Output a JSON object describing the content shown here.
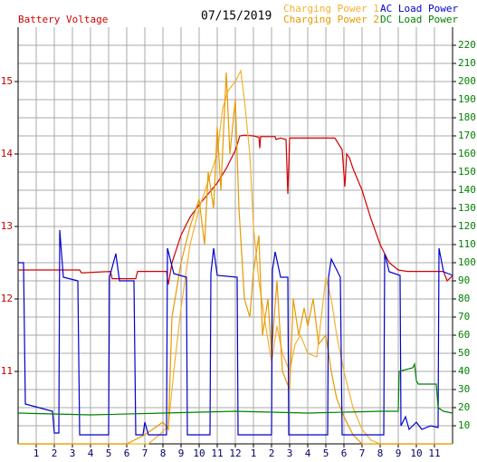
{
  "chart_data": {
    "type": "line",
    "title": "07/15/2019",
    "xlim": [
      0,
      24
    ],
    "xticks": [
      1,
      2,
      3,
      4,
      5,
      6,
      7,
      8,
      9,
      10,
      11,
      12,
      {
        "value": 13,
        "label": "1"
      },
      {
        "value": 14,
        "label": "2"
      },
      {
        "value": 15,
        "label": "3"
      },
      {
        "value": 16,
        "label": "4"
      },
      {
        "value": 17,
        "label": "5"
      },
      {
        "value": 18,
        "label": "6"
      },
      {
        "value": 19,
        "label": "7"
      },
      {
        "value": 20,
        "label": "8"
      },
      {
        "value": 21,
        "label": "9"
      },
      {
        "value": 22,
        "label": "10"
      },
      {
        "value": 23,
        "label": "11"
      }
    ],
    "ylim": [
      10,
      15.75
    ],
    "yticks": [
      11,
      12,
      13,
      14,
      15
    ],
    "y2lim": [
      0,
      230
    ],
    "y2ticks": [
      10,
      20,
      30,
      40,
      50,
      60,
      70,
      80,
      90,
      100,
      110,
      120,
      130,
      140,
      150,
      160,
      170,
      180,
      190,
      200,
      210,
      220
    ],
    "grid": true,
    "series": [
      {
        "name": "Battery Voltage",
        "color": "#d00000",
        "x": [
          0,
          3.4,
          3.5,
          5.1,
          5.2,
          6.5,
          6.6,
          8.2,
          8.3,
          8.5,
          9,
          9.5,
          10,
          10.5,
          11,
          11.5,
          12,
          12.25,
          12.5,
          13,
          13.3,
          13.35,
          13.4,
          14.2,
          14.25,
          14.5,
          14.8,
          14.9,
          15,
          17.5,
          17.9,
          18.05,
          18.15,
          18.3,
          18.5,
          19,
          19.5,
          20,
          20.5,
          21,
          21.5,
          23.5,
          23.7,
          24
        ],
        "values": [
          12.4,
          12.4,
          12.36,
          12.38,
          12.28,
          12.28,
          12.38,
          12.38,
          12.2,
          12.5,
          12.88,
          13.13,
          13.3,
          13.45,
          13.6,
          13.8,
          14.05,
          14.25,
          14.26,
          14.25,
          14.23,
          14.08,
          14.24,
          14.24,
          14.2,
          14.22,
          14.2,
          13.45,
          14.22,
          14.22,
          14.06,
          13.55,
          14.0,
          13.95,
          13.8,
          13.5,
          13.1,
          12.75,
          12.5,
          12.4,
          12.38,
          12.38,
          12.25,
          12.32
        ]
      },
      {
        "name": "Charging Power 1",
        "color": "#f5b030",
        "axis": "y2",
        "x": [
          0,
          7.2,
          7.8,
          8.3,
          8.6,
          9,
          9.5,
          10,
          10.5,
          11,
          11.3,
          11.6,
          12,
          12.3,
          12.5,
          12.8,
          13,
          13.3,
          13.6,
          14,
          14.3,
          14.6,
          15,
          15.3,
          15.6,
          16,
          16.5,
          17,
          17.3,
          17.6,
          18,
          18.5,
          19,
          19.5,
          20,
          24
        ],
        "values": [
          0,
          0,
          5,
          10,
          40,
          75,
          110,
          130,
          145,
          160,
          185,
          195,
          200,
          206,
          190,
          160,
          120,
          90,
          70,
          45,
          65,
          50,
          40,
          55,
          60,
          50,
          48,
          92,
          80,
          60,
          40,
          20,
          8,
          2,
          0,
          0
        ]
      },
      {
        "name": "Charging Power 2",
        "color": "#e89a00",
        "axis": "y2",
        "x": [
          0,
          6,
          7,
          8,
          8.3,
          8.5,
          9,
          9.5,
          10,
          10.3,
          10.5,
          10.8,
          11,
          11.2,
          11.5,
          11.7,
          12,
          12.2,
          12.5,
          12.8,
          13,
          13.3,
          13.5,
          13.8,
          14,
          14.3,
          14.6,
          15,
          15.2,
          15.5,
          15.8,
          16,
          16.3,
          16.6,
          17,
          17.3,
          17.6,
          18,
          18.5,
          19,
          24
        ],
        "values": [
          0,
          0,
          5,
          12,
          8,
          70,
          100,
          120,
          135,
          110,
          150,
          130,
          175,
          140,
          205,
          160,
          190,
          130,
          80,
          70,
          95,
          115,
          60,
          80,
          50,
          90,
          40,
          30,
          80,
          60,
          75,
          65,
          80,
          55,
          60,
          40,
          25,
          15,
          5,
          0,
          0
        ]
      },
      {
        "name": "AC Load Power",
        "color": "#0000cc",
        "axis": "y2",
        "x": [
          0,
          0.3,
          0.4,
          1.9,
          2.0,
          2.25,
          2.3,
          2.5,
          3.3,
          3.4,
          5.0,
          5.05,
          5.4,
          5.6,
          6.4,
          6.5,
          6.9,
          7.0,
          7.2,
          8.2,
          8.25,
          8.6,
          9.3,
          9.35,
          10.6,
          10.65,
          10.8,
          11.0,
          12.1,
          12.15,
          14.0,
          14.05,
          14.2,
          14.5,
          14.9,
          14.95,
          17.1,
          17.15,
          17.3,
          17.8,
          17.9,
          20.2,
          20.25,
          20.5,
          21.1,
          21.15,
          21.4,
          21.6,
          22.0,
          22.3,
          22.8,
          23.2,
          23.25,
          23.5,
          24
        ],
        "values": [
          100,
          100,
          22,
          18,
          6,
          6,
          118,
          92,
          90,
          5,
          5,
          92,
          105,
          90,
          90,
          5,
          5,
          12,
          5,
          5,
          108,
          94,
          92,
          5,
          5,
          94,
          108,
          93,
          92,
          5,
          5,
          96,
          106,
          92,
          92,
          5,
          5,
          92,
          102,
          92,
          5,
          5,
          105,
          95,
          93,
          10,
          15,
          8,
          12,
          8,
          10,
          9,
          108,
          95,
          93
        ]
      },
      {
        "name": "DC Load Power",
        "color": "#008000",
        "axis": "y2",
        "x": [
          0,
          4,
          8,
          12,
          16,
          20,
          21,
          21.05,
          21.8,
          21.9,
          22,
          22.1,
          23.1,
          23.2,
          23.5,
          24
        ],
        "values": [
          17,
          16,
          17,
          18,
          17,
          18,
          18,
          40,
          42,
          44,
          35,
          33,
          33,
          20,
          18,
          17
        ]
      }
    ]
  }
}
